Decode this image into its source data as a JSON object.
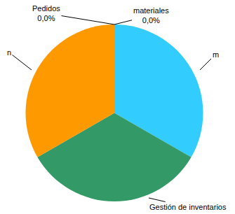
{
  "chart_data": {
    "type": "pie",
    "categories": [
      "materiales",
      "m",
      "Gestión de inventarios",
      "n",
      "Pedidos"
    ],
    "values": [
      0,
      33.3,
      33.3,
      33.3,
      0
    ],
    "value_labels": [
      "0,0%",
      null,
      null,
      null,
      "0,0%"
    ],
    "data_labels": true,
    "colors": [
      "#993366",
      "#33ccff",
      "#339966",
      "#ff9900",
      "#9999ff"
    ]
  }
}
